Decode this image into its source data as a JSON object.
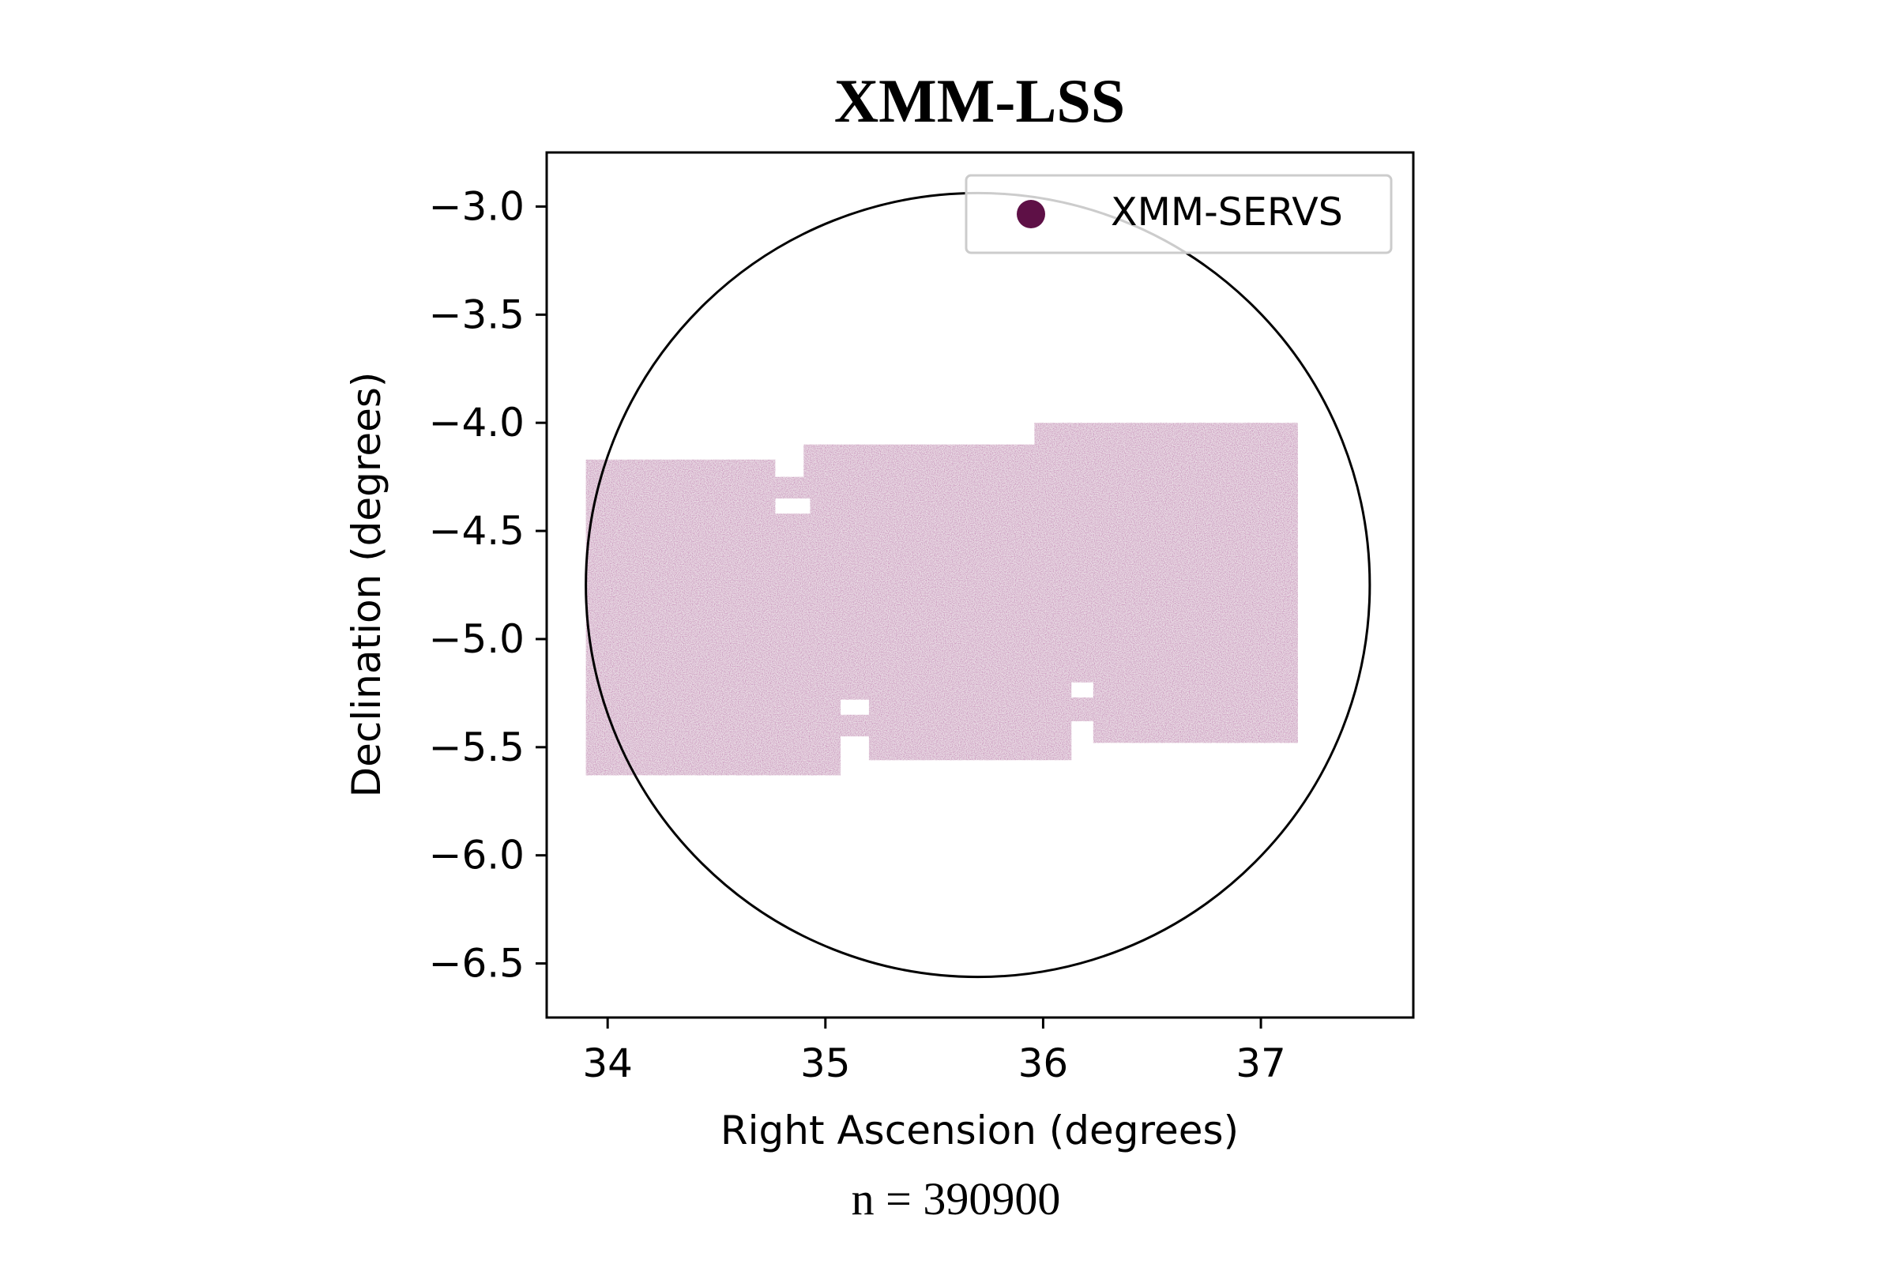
{
  "chart_data": {
    "type": "scatter",
    "title": "XMM-LSS",
    "xlabel": "Right Ascension (degrees)",
    "ylabel": "Declination (degrees)",
    "note": "n = 390900",
    "xlim": [
      33.72,
      37.7
    ],
    "ylim": [
      -6.75,
      -2.75
    ],
    "xticks": [
      34,
      35,
      36,
      37
    ],
    "xtick_labels": [
      "34",
      "35",
      "36",
      "37"
    ],
    "yticks": [
      -3.0,
      -3.5,
      -4.0,
      -4.5,
      -5.0,
      -5.5,
      -6.0,
      -6.5
    ],
    "ytick_labels": [
      "−3.0",
      "−3.5",
      "−4.0",
      "−4.5",
      "−5.0",
      "−5.5",
      "−6.0",
      "−6.5"
    ],
    "grid": false,
    "legend": {
      "placement": "upper right",
      "entries": [
        "XMM-SERVS"
      ]
    },
    "series": [
      {
        "name": "XMM-SERVS",
        "color": "#5e1046",
        "count": 390900,
        "footprint_ra_dec": [
          [
            33.9,
            -4.17
          ],
          [
            34.77,
            -4.17
          ],
          [
            34.77,
            -4.25
          ],
          [
            34.9,
            -4.25
          ],
          [
            34.9,
            -4.1
          ],
          [
            35.96,
            -4.1
          ],
          [
            35.96,
            -4.0
          ],
          [
            37.17,
            -4.0
          ],
          [
            37.17,
            -5.48
          ],
          [
            36.23,
            -5.48
          ],
          [
            36.23,
            -5.38
          ],
          [
            36.13,
            -5.38
          ],
          [
            36.13,
            -5.56
          ],
          [
            35.2,
            -5.56
          ],
          [
            35.2,
            -5.45
          ],
          [
            35.07,
            -5.45
          ],
          [
            35.07,
            -5.63
          ],
          [
            33.9,
            -5.63
          ]
        ],
        "footprint_gaps_ra_dec": [
          [
            [
              34.77,
              -4.35
            ],
            [
              34.93,
              -4.35
            ],
            [
              34.93,
              -4.42
            ],
            [
              34.77,
              -4.42
            ]
          ],
          [
            [
              35.07,
              -5.28
            ],
            [
              35.2,
              -5.28
            ],
            [
              35.2,
              -5.35
            ],
            [
              35.07,
              -5.35
            ]
          ],
          [
            [
              36.13,
              -5.2
            ],
            [
              36.23,
              -5.2
            ],
            [
              36.23,
              -5.27
            ],
            [
              36.13,
              -5.27
            ]
          ]
        ]
      }
    ],
    "circle": {
      "center_ra": 35.7,
      "center_dec": -4.75,
      "radius_deg": 1.8,
      "color": "#000000"
    }
  }
}
